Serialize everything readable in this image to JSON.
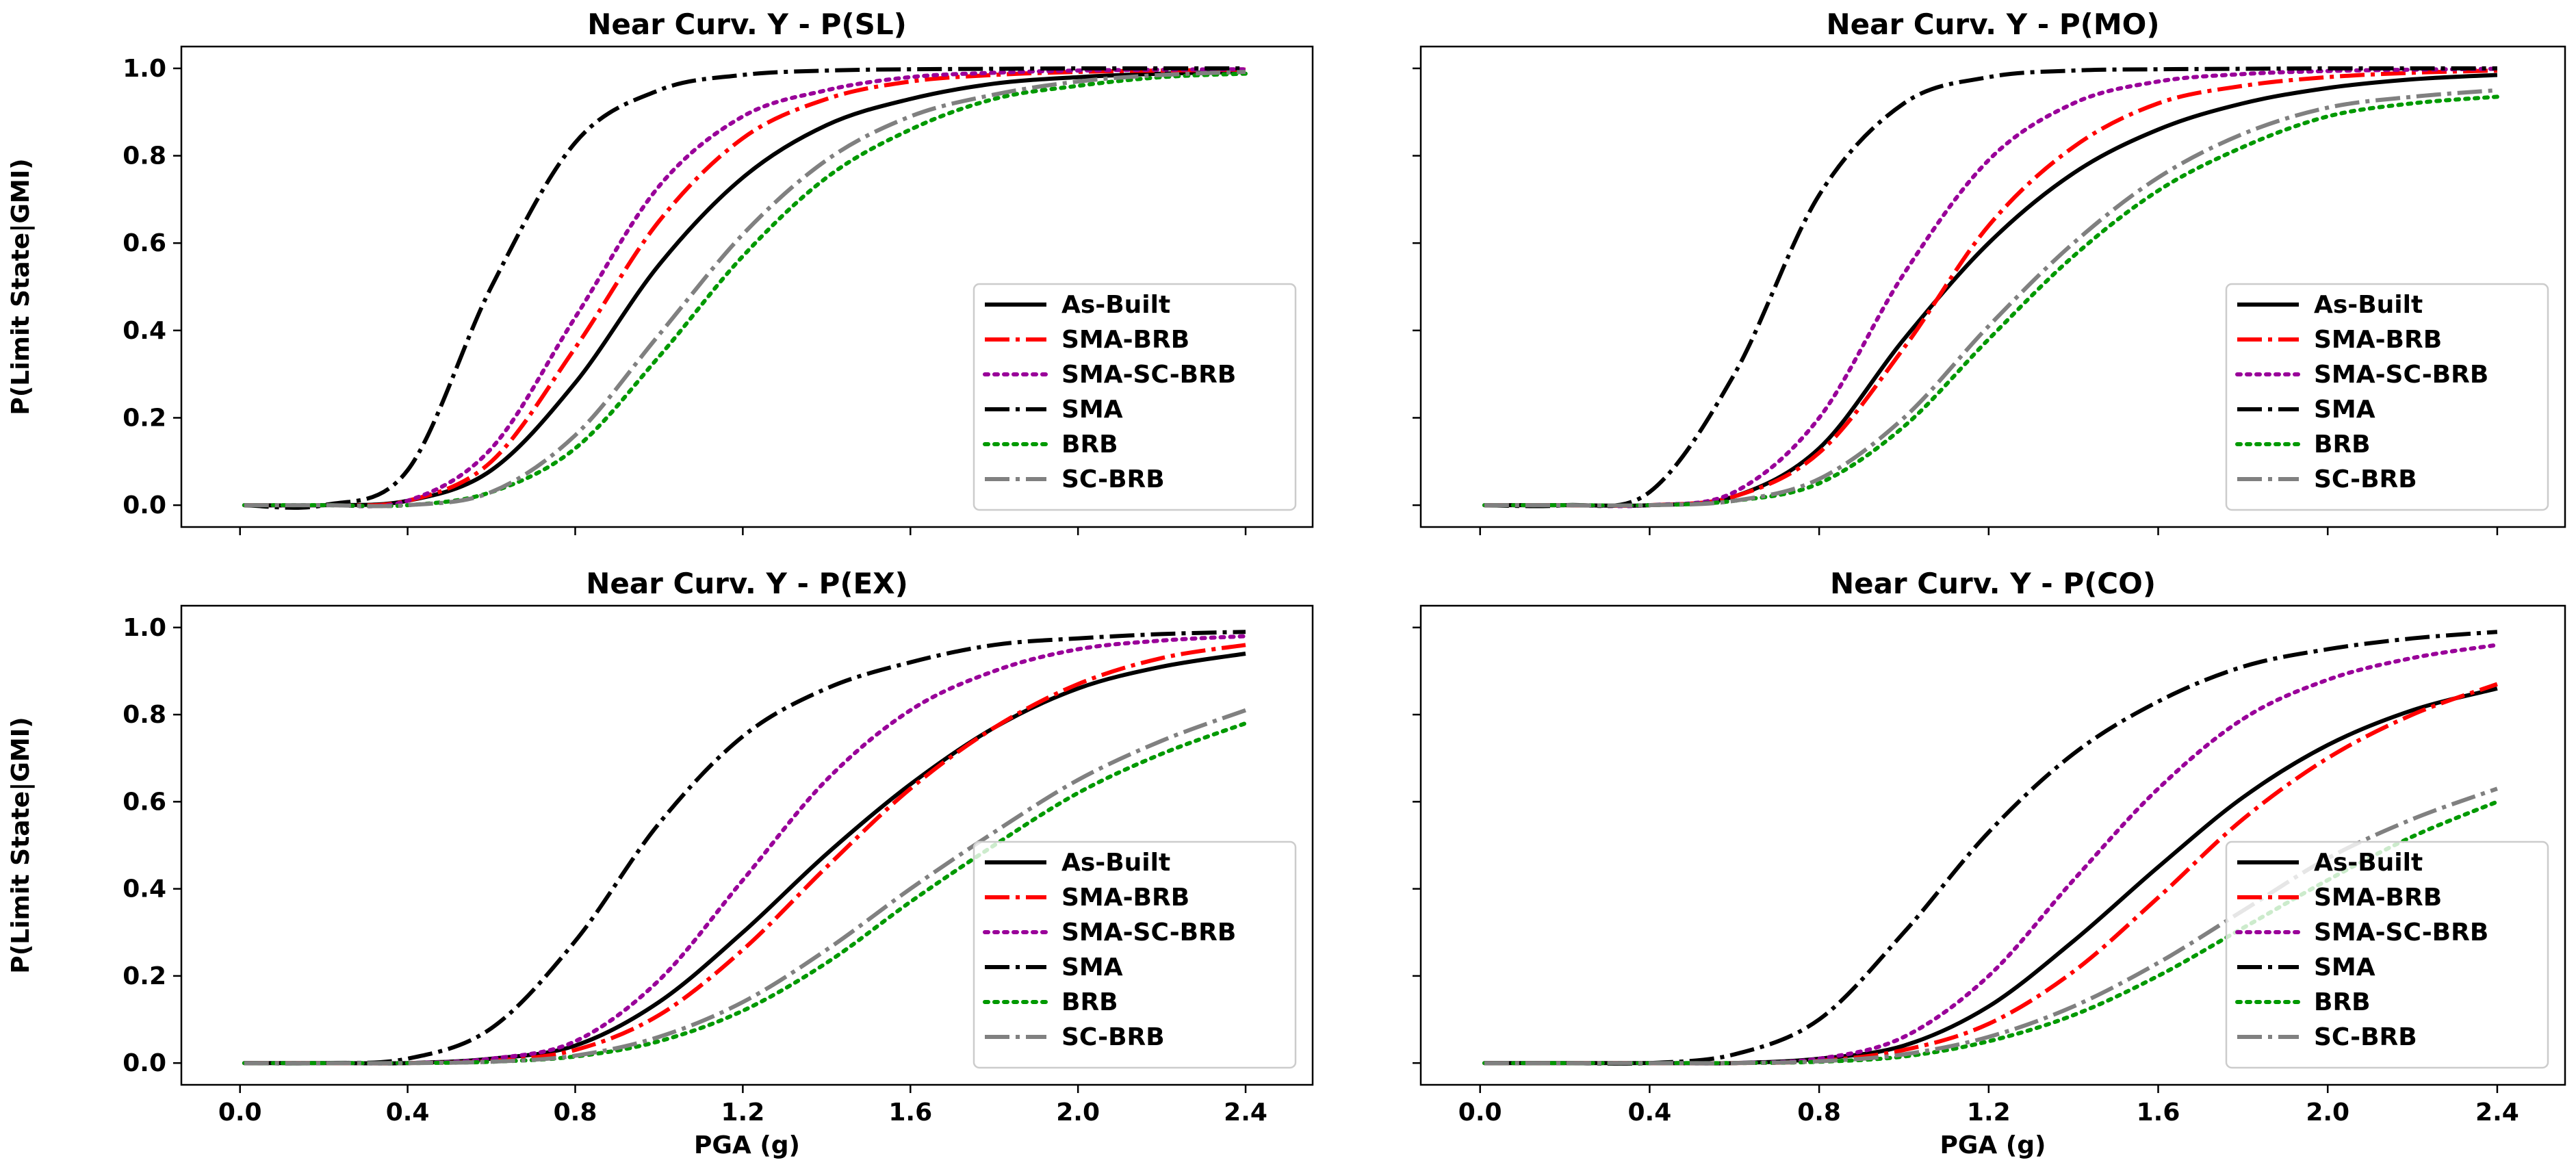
{
  "figure": {
    "ylabel": "P(Limit State|GMI)",
    "xlabel": "PGA (g)"
  },
  "legend_order": [
    "As-Built",
    "SMA-BRB",
    "SMA-SC-BRB",
    "SMA",
    "BRB",
    "SC-BRB"
  ],
  "series_styles": {
    "As-Built": {
      "color": "#000000",
      "dash": "solid"
    },
    "SMA-BRB": {
      "color": "#ff0000",
      "dash": "dashdot"
    },
    "SMA-SC-BRB": {
      "color": "#990099",
      "dash": "dotted"
    },
    "SMA": {
      "color": "#000000",
      "dash": "dashdot"
    },
    "BRB": {
      "color": "#009900",
      "dash": "dotted"
    },
    "SC-BRB": {
      "color": "#808080",
      "dash": "dashdot"
    }
  },
  "chart_data": [
    {
      "type": "line",
      "title": "Near Curv. Y - P(SL)",
      "xlabel": "",
      "ylabel": "P(Limit State|GMI)",
      "xlim": [
        -0.14,
        2.56
      ],
      "ylim": [
        -0.05,
        1.05
      ],
      "xticks": [
        "0.0",
        "0.4",
        "0.8",
        "1.2",
        "1.6",
        "2.0",
        "2.4"
      ],
      "yticks": [
        "0.0",
        "0.2",
        "0.4",
        "0.6",
        "0.8",
        "1.0"
      ],
      "show_xtick_labels": false,
      "legend": "lower right",
      "x": [
        0.01,
        0.2,
        0.4,
        0.6,
        0.8,
        1.0,
        1.2,
        1.4,
        1.6,
        1.8,
        2.0,
        2.2,
        2.4
      ],
      "series": [
        {
          "name": "As-Built",
          "values": [
            0.0,
            0.0,
            0.01,
            0.08,
            0.28,
            0.55,
            0.75,
            0.87,
            0.93,
            0.965,
            0.98,
            0.988,
            0.992
          ]
        },
        {
          "name": "SMA-BRB",
          "values": [
            0.0,
            0.0,
            0.01,
            0.1,
            0.36,
            0.65,
            0.84,
            0.93,
            0.97,
            0.985,
            0.992,
            0.995,
            0.997
          ]
        },
        {
          "name": "SMA-SC-BRB",
          "values": [
            0.0,
            0.0,
            0.01,
            0.13,
            0.43,
            0.73,
            0.89,
            0.95,
            0.98,
            0.99,
            0.995,
            0.997,
            0.998
          ]
        },
        {
          "name": "SMA",
          "values": [
            0.0,
            0.0,
            0.08,
            0.5,
            0.83,
            0.95,
            0.985,
            0.995,
            0.998,
            0.999,
            1.0,
            1.0,
            1.0
          ]
        },
        {
          "name": "BRB",
          "values": [
            0.0,
            0.0,
            0.0,
            0.03,
            0.13,
            0.34,
            0.57,
            0.75,
            0.86,
            0.93,
            0.96,
            0.98,
            0.988
          ]
        },
        {
          "name": "SC-BRB",
          "values": [
            0.0,
            0.0,
            0.0,
            0.03,
            0.16,
            0.39,
            0.62,
            0.79,
            0.89,
            0.94,
            0.97,
            0.985,
            0.992
          ]
        }
      ]
    },
    {
      "type": "line",
      "title": "Near Curv. Y - P(MO)",
      "xlabel": "",
      "ylabel": "",
      "xlim": [
        -0.14,
        2.56
      ],
      "ylim": [
        -0.05,
        1.05
      ],
      "xticks": [
        "0.0",
        "0.4",
        "0.8",
        "1.2",
        "1.6",
        "2.0",
        "2.4"
      ],
      "yticks": [
        "0.0",
        "0.2",
        "0.4",
        "0.6",
        "0.8",
        "1.0"
      ],
      "show_xtick_labels": false,
      "legend": "lower right",
      "x": [
        0.01,
        0.2,
        0.4,
        0.6,
        0.8,
        1.0,
        1.2,
        1.4,
        1.6,
        1.8,
        2.0,
        2.2,
        2.4
      ],
      "series": [
        {
          "name": "As-Built",
          "values": [
            0.0,
            0.0,
            0.0,
            0.02,
            0.13,
            0.38,
            0.6,
            0.76,
            0.86,
            0.92,
            0.955,
            0.975,
            0.985
          ]
        },
        {
          "name": "SMA-BRB",
          "values": [
            0.0,
            0.0,
            0.0,
            0.02,
            0.12,
            0.36,
            0.64,
            0.82,
            0.92,
            0.96,
            0.98,
            0.99,
            0.995
          ]
        },
        {
          "name": "SMA-SC-BRB",
          "values": [
            0.0,
            0.0,
            0.0,
            0.03,
            0.2,
            0.53,
            0.79,
            0.92,
            0.97,
            0.987,
            0.994,
            0.997,
            0.999
          ]
        },
        {
          "name": "SMA",
          "values": [
            0.0,
            0.0,
            0.03,
            0.3,
            0.71,
            0.92,
            0.98,
            0.995,
            0.998,
            0.999,
            1.0,
            1.0,
            1.0
          ]
        },
        {
          "name": "BRB",
          "values": [
            0.0,
            0.0,
            0.0,
            0.01,
            0.05,
            0.18,
            0.38,
            0.57,
            0.72,
            0.82,
            0.89,
            0.92,
            0.935
          ]
        },
        {
          "name": "SC-BRB",
          "values": [
            0.0,
            0.0,
            0.0,
            0.01,
            0.06,
            0.2,
            0.41,
            0.6,
            0.75,
            0.85,
            0.91,
            0.935,
            0.95
          ]
        }
      ]
    },
    {
      "type": "line",
      "title": "Near Curv. Y - P(EX)",
      "xlabel": "PGA (g)",
      "ylabel": "P(Limit State|GMI)",
      "xlim": [
        -0.14,
        2.56
      ],
      "ylim": [
        -0.05,
        1.05
      ],
      "xticks": [
        "0.0",
        "0.4",
        "0.8",
        "1.2",
        "1.6",
        "2.0",
        "2.4"
      ],
      "yticks": [
        "0.0",
        "0.2",
        "0.4",
        "0.6",
        "0.8",
        "1.0"
      ],
      "show_xtick_labels": true,
      "legend": "lower right",
      "x": [
        0.01,
        0.2,
        0.4,
        0.6,
        0.8,
        1.0,
        1.2,
        1.4,
        1.6,
        1.8,
        2.0,
        2.2,
        2.4
      ],
      "series": [
        {
          "name": "As-Built",
          "values": [
            0.0,
            0.0,
            0.0,
            0.01,
            0.04,
            0.14,
            0.3,
            0.48,
            0.64,
            0.77,
            0.86,
            0.91,
            0.94
          ]
        },
        {
          "name": "SMA-BRB",
          "values": [
            0.0,
            0.0,
            0.0,
            0.005,
            0.03,
            0.11,
            0.26,
            0.45,
            0.63,
            0.77,
            0.87,
            0.93,
            0.96
          ]
        },
        {
          "name": "SMA-SC-BRB",
          "values": [
            0.0,
            0.0,
            0.0,
            0.01,
            0.05,
            0.19,
            0.42,
            0.65,
            0.81,
            0.9,
            0.95,
            0.97,
            0.98
          ]
        },
        {
          "name": "SMA",
          "values": [
            0.0,
            0.0,
            0.01,
            0.08,
            0.28,
            0.55,
            0.75,
            0.86,
            0.92,
            0.96,
            0.975,
            0.985,
            0.99
          ]
        },
        {
          "name": "BRB",
          "values": [
            0.0,
            0.0,
            0.0,
            0.003,
            0.015,
            0.05,
            0.12,
            0.23,
            0.37,
            0.5,
            0.62,
            0.71,
            0.78
          ]
        },
        {
          "name": "SC-BRB",
          "values": [
            0.0,
            0.0,
            0.0,
            0.003,
            0.017,
            0.06,
            0.14,
            0.26,
            0.4,
            0.53,
            0.65,
            0.74,
            0.81
          ]
        }
      ]
    },
    {
      "type": "line",
      "title": "Near Curv. Y - P(CO)",
      "xlabel": "PGA (g)",
      "ylabel": "",
      "xlim": [
        -0.14,
        2.56
      ],
      "ylim": [
        -0.05,
        1.05
      ],
      "xticks": [
        "0.0",
        "0.4",
        "0.8",
        "1.2",
        "1.6",
        "2.0",
        "2.4"
      ],
      "yticks": [
        "0.0",
        "0.2",
        "0.4",
        "0.6",
        "0.8",
        "1.0"
      ],
      "show_xtick_labels": true,
      "legend": "lower right",
      "x": [
        0.01,
        0.2,
        0.4,
        0.6,
        0.8,
        1.0,
        1.2,
        1.4,
        1.6,
        1.8,
        2.0,
        2.2,
        2.4
      ],
      "series": [
        {
          "name": "As-Built",
          "values": [
            0.0,
            0.0,
            0.0,
            0.0,
            0.01,
            0.04,
            0.13,
            0.28,
            0.45,
            0.61,
            0.73,
            0.81,
            0.86
          ]
        },
        {
          "name": "SMA-BRB",
          "values": [
            0.0,
            0.0,
            0.0,
            0.0,
            0.005,
            0.03,
            0.09,
            0.21,
            0.38,
            0.56,
            0.7,
            0.8,
            0.87
          ]
        },
        {
          "name": "SMA-SC-BRB",
          "values": [
            0.0,
            0.0,
            0.0,
            0.0,
            0.01,
            0.06,
            0.2,
            0.42,
            0.63,
            0.79,
            0.88,
            0.93,
            0.96
          ]
        },
        {
          "name": "SMA",
          "values": [
            0.0,
            0.0,
            0.0,
            0.02,
            0.1,
            0.3,
            0.53,
            0.71,
            0.83,
            0.91,
            0.95,
            0.975,
            0.99
          ]
        },
        {
          "name": "BRB",
          "values": [
            0.0,
            0.0,
            0.0,
            0.0,
            0.003,
            0.015,
            0.05,
            0.11,
            0.2,
            0.31,
            0.42,
            0.52,
            0.6
          ]
        },
        {
          "name": "SC-BRB",
          "values": [
            0.0,
            0.0,
            0.0,
            0.0,
            0.004,
            0.02,
            0.06,
            0.13,
            0.23,
            0.35,
            0.47,
            0.56,
            0.63
          ]
        }
      ]
    }
  ]
}
